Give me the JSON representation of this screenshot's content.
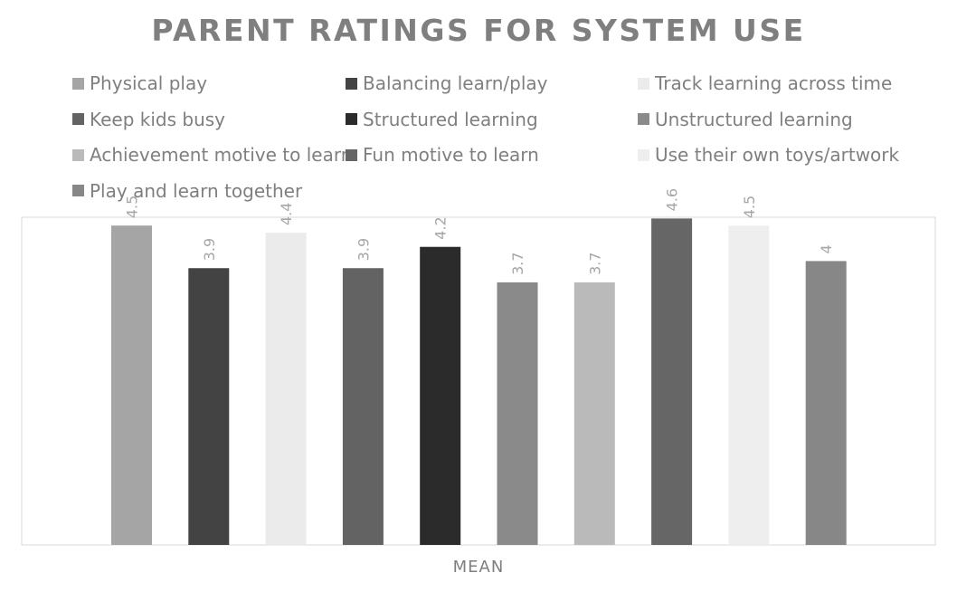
{
  "chart_data": {
    "type": "bar",
    "title": "PARENT RATINGS FOR SYSTEM USE",
    "xlabel": "MEAN",
    "ylabel": "",
    "ylim": [
      0,
      5
    ],
    "grid": false,
    "legend_position": "top",
    "categories": [
      "MEAN"
    ],
    "series": [
      {
        "name": "Physical play",
        "values": [
          4.5
        ],
        "label": "4.5",
        "color": "#a5a5a5"
      },
      {
        "name": "Balancing learn/play",
        "values": [
          3.9
        ],
        "label": "3.9",
        "color": "#434343"
      },
      {
        "name": "Track learning across time",
        "values": [
          4.4
        ],
        "label": "4.4",
        "color": "#ebebeb"
      },
      {
        "name": "Keep kids busy",
        "values": [
          3.9
        ],
        "label": "3.9",
        "color": "#636363"
      },
      {
        "name": "Structured learning",
        "values": [
          4.2
        ],
        "label": "4.2",
        "color": "#2b2b2b"
      },
      {
        "name": "Unstructured learning",
        "values": [
          3.7
        ],
        "label": "3.7",
        "color": "#8a8a8a"
      },
      {
        "name": "Achievement motive to learn",
        "values": [
          3.7
        ],
        "label": "3.7",
        "color": "#bababa"
      },
      {
        "name": "Fun motive to learn",
        "values": [
          4.6
        ],
        "label": "4.6",
        "color": "#666666"
      },
      {
        "name": "Use their own toys/artwork",
        "values": [
          4.5
        ],
        "label": "4.5",
        "color": "#eeeeee"
      },
      {
        "name": "Play and learn together",
        "values": [
          4
        ],
        "label": "4",
        "color": "#878787"
      }
    ]
  }
}
